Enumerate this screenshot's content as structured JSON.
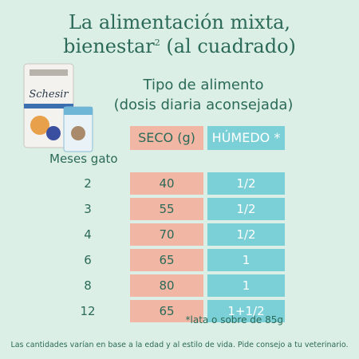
{
  "title": {
    "line1": "La alimentación mixta,",
    "line2": "bienestar",
    "superscript": "2",
    "line2_end": " (al cuadrado)"
  },
  "subtitle": {
    "line1": "Tipo de alimento",
    "line2": "(dosis diaria aconsejada)"
  },
  "table": {
    "row_header": "Meses gato",
    "columns": [
      "SECO (g)",
      "HÚMEDO *"
    ],
    "rows": [
      [
        2,
        40,
        "1/2"
      ],
      [
        3,
        55,
        "1/2"
      ],
      [
        4,
        70,
        "1/2"
      ],
      [
        6,
        65,
        "1"
      ],
      [
        8,
        80,
        "1"
      ],
      [
        12,
        65,
        "1+1/2"
      ]
    ]
  },
  "product": {
    "brand": "Schesir"
  },
  "footnote": "*lata o sobre de 85g",
  "disclaimer": "Las cantidades varían en base a la edad y al estilo de vida. Pide consejo a tu veterinario."
}
